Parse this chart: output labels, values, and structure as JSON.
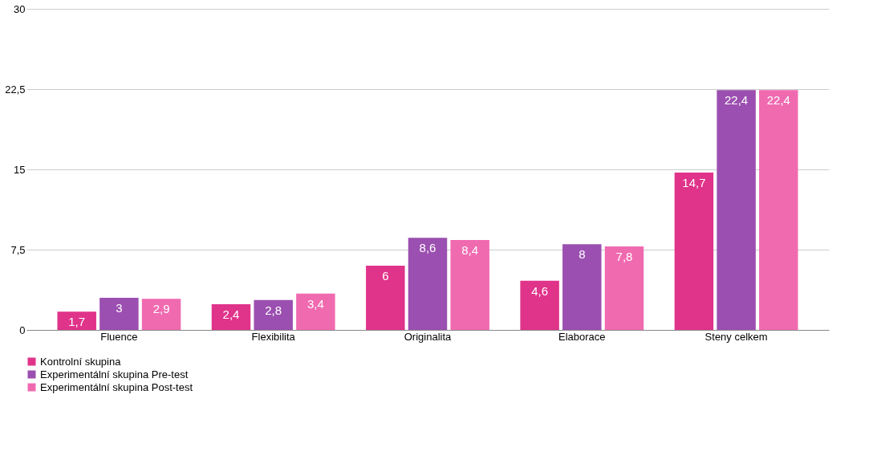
{
  "chart_data": {
    "type": "bar",
    "categories": [
      "Fluence",
      "Flexibilita",
      "Originalita",
      "Elaborace",
      "Steny celkem"
    ],
    "series": [
      {
        "name": "Kontrolní skupina",
        "color": "#e0338a",
        "values": [
          1.7,
          2.4,
          6,
          4.6,
          14.7
        ],
        "value_labels": [
          "1,7",
          "2,4",
          "6",
          "4,6",
          "14,7"
        ]
      },
      {
        "name": "Experimentální skupina Pre-test",
        "color": "#9b4fb0",
        "values": [
          3,
          2.8,
          8.6,
          8,
          22.4
        ],
        "value_labels": [
          "3",
          "2,8",
          "8,6",
          "8",
          "22,4"
        ]
      },
      {
        "name": "Experimentální skupina Post-test",
        "color": "#f06ab0",
        "values": [
          2.9,
          3.4,
          8.4,
          7.8,
          22.4
        ],
        "value_labels": [
          "2,9",
          "3,4",
          "8,4",
          "7,8",
          "22,4"
        ]
      }
    ],
    "ylim": [
      0,
      30
    ],
    "yticks": [
      0,
      {
        "value": 7.5,
        "label": "7,5"
      },
      15,
      {
        "value": 22.5,
        "label": "22,5"
      },
      30
    ],
    "grid": "y",
    "legend": "bottom"
  }
}
